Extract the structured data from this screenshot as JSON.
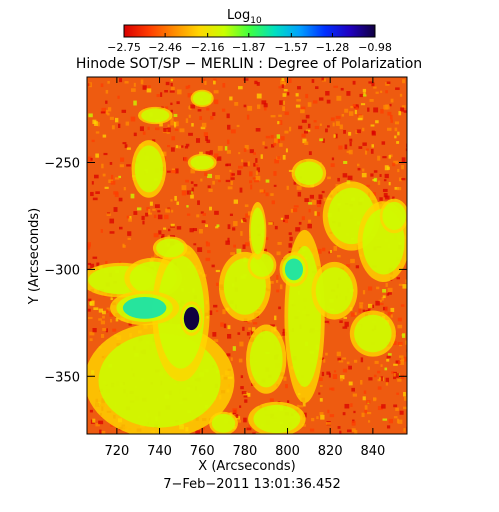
{
  "chart_data": {
    "type": "heatmap",
    "title": "Hinode SOT/SP − MERLIN : Degree of Polarization",
    "xlabel": "X (Arcseconds)",
    "ylabel": "Y (Arcseconds)",
    "date_label": "7−Feb−2011 13:01:36.452",
    "xlim": [
      706,
      856
    ],
    "ylim": [
      -377,
      -210
    ],
    "x_ticks": [
      720,
      740,
      760,
      780,
      800,
      820,
      840
    ],
    "x_tick_labels": [
      "720",
      "740",
      "760",
      "780",
      "800",
      "820",
      "840"
    ],
    "y_ticks": [
      -250,
      -300,
      -350
    ],
    "y_tick_labels": [
      "−250",
      "−300",
      "−350"
    ],
    "colorbar": {
      "label": "Log",
      "label_subscript": "10",
      "ticks": [
        -2.75,
        -2.46,
        -2.16,
        -1.87,
        -1.57,
        -1.28,
        -0.98
      ],
      "tick_labels": [
        "−2.75",
        "−2.46",
        "−2.16",
        "−1.87",
        "−1.57",
        "−1.28",
        "−0.98"
      ],
      "range": [
        -2.75,
        -0.98
      ],
      "colormap": [
        "#d90000",
        "#ff3c00",
        "#ff8c00",
        "#ffd600",
        "#c8ff00",
        "#40ff40",
        "#00e0c0",
        "#00a0ff",
        "#0030ff",
        "#2000c0",
        "#100040"
      ]
    },
    "background_color": "#ee5b10",
    "high_regions": [
      {
        "x": 740,
        "y": -352,
        "rx": 26,
        "ry": 20,
        "level": 0.48
      },
      {
        "x": 722,
        "y": -305,
        "rx": 14,
        "ry": 6,
        "level": 0.42
      },
      {
        "x": 737,
        "y": -304,
        "rx": 10,
        "ry": 7,
        "level": 0.44
      },
      {
        "x": 750,
        "y": -320,
        "rx": 10,
        "ry": 24,
        "level": 0.46
      },
      {
        "x": 755,
        "y": -323,
        "rx": 4,
        "ry": 6,
        "level": 1.0
      },
      {
        "x": 733,
        "y": -318,
        "rx": 12,
        "ry": 6,
        "level": 0.6
      },
      {
        "x": 735,
        "y": -253,
        "rx": 6,
        "ry": 10,
        "level": 0.44
      },
      {
        "x": 745,
        "y": -290,
        "rx": 6,
        "ry": 4,
        "level": 0.38
      },
      {
        "x": 738,
        "y": -228,
        "rx": 6,
        "ry": 3,
        "level": 0.36
      },
      {
        "x": 760,
        "y": -250,
        "rx": 5,
        "ry": 3,
        "level": 0.36
      },
      {
        "x": 780,
        "y": -308,
        "rx": 9,
        "ry": 12,
        "level": 0.46
      },
      {
        "x": 788,
        "y": -298,
        "rx": 5,
        "ry": 5,
        "level": 0.5
      },
      {
        "x": 790,
        "y": -342,
        "rx": 7,
        "ry": 12,
        "level": 0.48
      },
      {
        "x": 786,
        "y": -282,
        "rx": 3,
        "ry": 10,
        "level": 0.46
      },
      {
        "x": 808,
        "y": -322,
        "rx": 7,
        "ry": 30,
        "level": 0.44
      },
      {
        "x": 803,
        "y": -300,
        "rx": 5,
        "ry": 6,
        "level": 0.55
      },
      {
        "x": 795,
        "y": -370,
        "rx": 10,
        "ry": 6,
        "level": 0.38
      },
      {
        "x": 810,
        "y": -255,
        "rx": 6,
        "ry": 5,
        "level": 0.4
      },
      {
        "x": 830,
        "y": -275,
        "rx": 10,
        "ry": 12,
        "level": 0.42
      },
      {
        "x": 845,
        "y": -287,
        "rx": 9,
        "ry": 14,
        "level": 0.48
      },
      {
        "x": 850,
        "y": -275,
        "rx": 5,
        "ry": 6,
        "level": 0.5
      },
      {
        "x": 822,
        "y": -310,
        "rx": 8,
        "ry": 10,
        "level": 0.42
      },
      {
        "x": 840,
        "y": -330,
        "rx": 8,
        "ry": 8,
        "level": 0.4
      },
      {
        "x": 770,
        "y": -372,
        "rx": 5,
        "ry": 4,
        "level": 0.38
      },
      {
        "x": 760,
        "y": -220,
        "rx": 4,
        "ry": 3,
        "level": 0.36
      }
    ]
  }
}
